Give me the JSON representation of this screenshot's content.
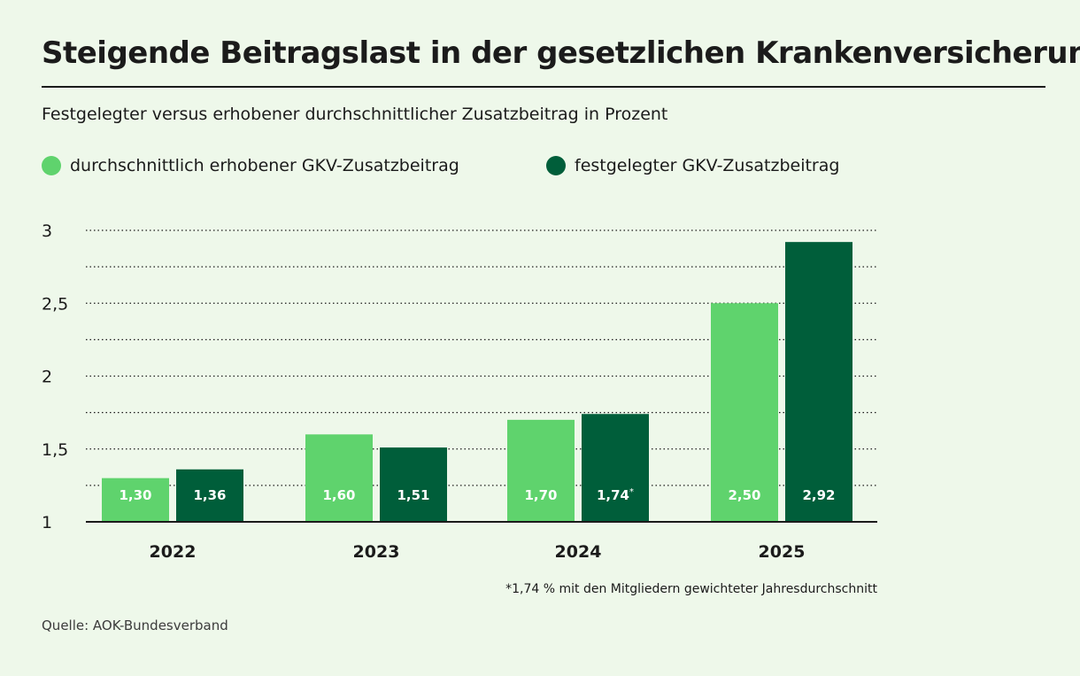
{
  "title": "Steigende Beitragslast in der gesetzlichen Krankenversicherung",
  "subtitle": "Festgelegter versus erhobener durchschnittlicher Zusatzbeitrag in Prozent",
  "source": "Quelle: AOK-Bundesverband",
  "colors": {
    "erhoben": "#5fd36d",
    "festgelegt": "#005e3a",
    "bar_label_text": "#ffffff"
  },
  "chart_data": {
    "type": "bar",
    "title": "Steigende Beitragslast in der gesetzlichen Krankenversicherung",
    "subtitle": "Festgelegter versus erhobener durchschnittlicher Zusatzbeitrag in Prozent",
    "categories": [
      "2022",
      "2023",
      "2024",
      "2025"
    ],
    "series": [
      {
        "name": "durchschnittlich erhobener GKV-Zusatzbeitrag",
        "values": [
          1.3,
          1.6,
          1.7,
          2.5
        ],
        "labels": [
          "1,30",
          "1,60",
          "1,70",
          "2,50"
        ]
      },
      {
        "name": "festgelegter GKV-Zusatzbeitrag",
        "values": [
          1.36,
          1.51,
          1.74,
          2.92
        ],
        "labels": [
          "1,36",
          "1,51",
          "1,74",
          "2,92"
        ],
        "label_suffix": [
          "",
          "",
          "*",
          ""
        ]
      }
    ],
    "y_ticks": [
      {
        "value": 1,
        "label": "1"
      },
      {
        "value": 1.5,
        "label": "1,5"
      },
      {
        "value": 2,
        "label": "2"
      },
      {
        "value": 2.5,
        "label": "2,5"
      },
      {
        "value": 3,
        "label": "3"
      }
    ],
    "ylim": [
      1,
      3
    ],
    "grid_step": 0.25,
    "grid": "dotted",
    "legend": "top-left",
    "footnote": "*1,74 % mit den Mitgliedern gewichteter Jahresdurchschnitt",
    "xlabel": "",
    "ylabel": ""
  }
}
